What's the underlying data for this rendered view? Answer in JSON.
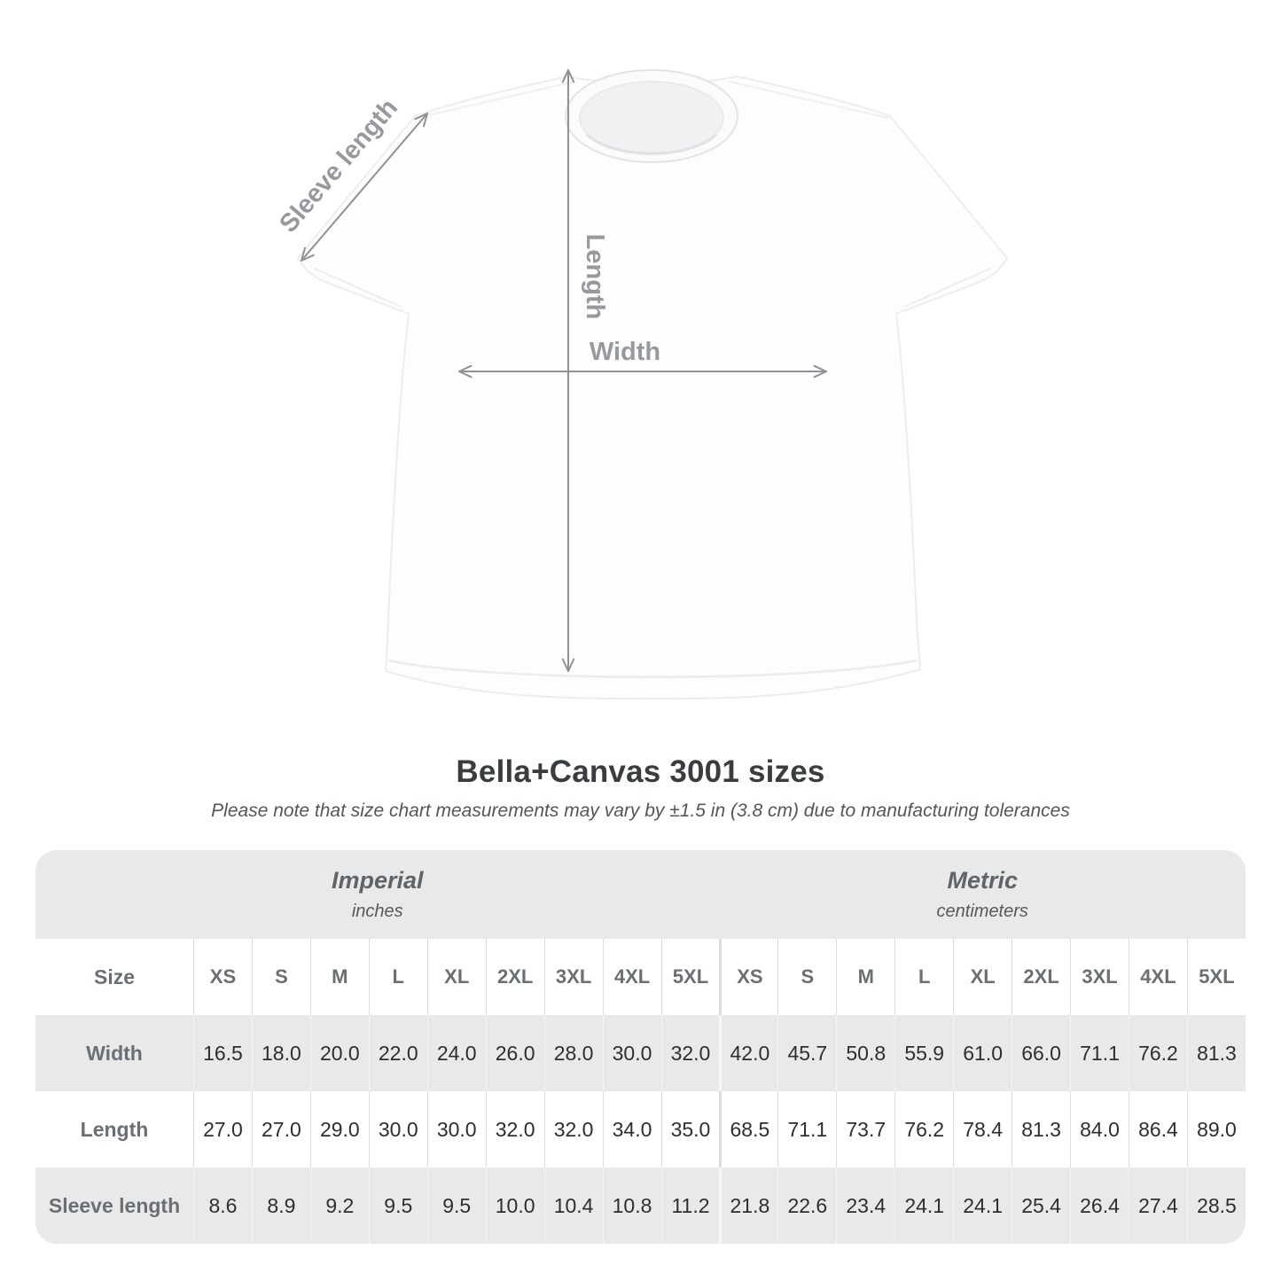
{
  "figure": {
    "sleeve_label": "Sleeve length",
    "length_label": "Length",
    "width_label": "Width",
    "arrow_color": "#8e9296",
    "label_color": "#96999d"
  },
  "heading": {
    "title": "Bella+Canvas 3001 sizes",
    "subtitle": "Please note that size chart measurements may vary by ±1.5 in (3.8 cm) due to manufacturing tolerances"
  },
  "table": {
    "size_label": "Size",
    "sizes": [
      "XS",
      "S",
      "M",
      "L",
      "XL",
      "2XL",
      "3XL",
      "4XL",
      "5XL"
    ],
    "sections": [
      {
        "label": "Imperial",
        "unit": "inches"
      },
      {
        "label": "Metric",
        "unit": "centimeters"
      }
    ],
    "rows": [
      {
        "label": "Width",
        "imperial": [
          "16.5",
          "18.0",
          "20.0",
          "22.0",
          "24.0",
          "26.0",
          "28.0",
          "30.0",
          "32.0"
        ],
        "metric": [
          "42.0",
          "45.7",
          "50.8",
          "55.9",
          "61.0",
          "66.0",
          "71.1",
          "76.2",
          "81.3"
        ]
      },
      {
        "label": "Length",
        "imperial": [
          "27.0",
          "27.0",
          "29.0",
          "30.0",
          "30.0",
          "32.0",
          "32.0",
          "34.0",
          "35.0"
        ],
        "metric": [
          "68.5",
          "71.1",
          "73.7",
          "76.2",
          "78.4",
          "81.3",
          "84.0",
          "86.4",
          "89.0"
        ]
      },
      {
        "label": "Sleeve length",
        "imperial": [
          "8.6",
          "8.9",
          "9.2",
          "9.5",
          "9.5",
          "10.0",
          "10.4",
          "10.8",
          "11.2"
        ],
        "metric": [
          "21.8",
          "22.6",
          "23.4",
          "24.1",
          "24.1",
          "25.4",
          "26.4",
          "27.4",
          "28.5"
        ]
      }
    ]
  },
  "chart_data": {
    "type": "table",
    "title": "Bella+Canvas 3001 sizes",
    "note": "Please note that size chart measurements may vary by ±1.5 in (3.8 cm) due to manufacturing tolerances",
    "columns": [
      "XS",
      "S",
      "M",
      "L",
      "XL",
      "2XL",
      "3XL",
      "4XL",
      "5XL"
    ],
    "units": {
      "imperial": "inches",
      "metric": "centimeters"
    },
    "rows": [
      {
        "measurement": "Width",
        "imperial_in": [
          16.5,
          18.0,
          20.0,
          22.0,
          24.0,
          26.0,
          28.0,
          30.0,
          32.0
        ],
        "metric_cm": [
          42.0,
          45.7,
          50.8,
          55.9,
          61.0,
          66.0,
          71.1,
          76.2,
          81.3
        ]
      },
      {
        "measurement": "Length",
        "imperial_in": [
          27.0,
          27.0,
          29.0,
          30.0,
          30.0,
          32.0,
          32.0,
          34.0,
          35.0
        ],
        "metric_cm": [
          68.5,
          71.1,
          73.7,
          76.2,
          78.4,
          81.3,
          84.0,
          86.4,
          89.0
        ]
      },
      {
        "measurement": "Sleeve length",
        "imperial_in": [
          8.6,
          8.9,
          9.2,
          9.5,
          9.5,
          10.0,
          10.4,
          10.8,
          11.2
        ],
        "metric_cm": [
          21.8,
          22.6,
          23.4,
          24.1,
          24.1,
          25.4,
          26.4,
          27.4,
          28.5
        ]
      }
    ]
  }
}
